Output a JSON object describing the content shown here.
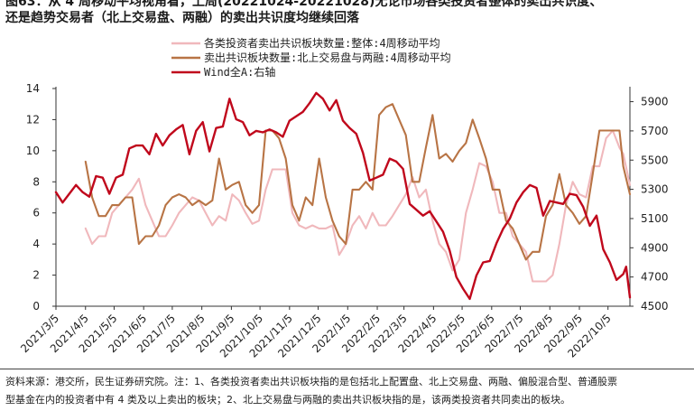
{
  "header": {
    "title_line1": "图63：从 4 周移动平均视角看，上周(20221024-20221028)无论市场各类投资者整体的卖出共识度、",
    "title_line2": "还是趋势交易者（北上交易盘、两融）的卖出共识度均继续回落"
  },
  "footer": {
    "source_line1": "资料来源：港交所，民生证券研究院。注：1、各类投资者卖出共识板块指的是包括北上配置盘、北上交易盘、两融、偏股混合型、普通股票",
    "source_line2": "型基金在内的投资者中有 4 类及以上卖出的板块；2、北上交易盘与两融的卖出共识板块指的是，该两类投资者共同卖出的板块。"
  },
  "chart_data": {
    "type": "line",
    "x_start": "2021-03-05",
    "x_end": "2022-10-28",
    "x_tick_labels": [
      "2021/3/5",
      "2021/4/5",
      "2021/5/5",
      "2021/6/5",
      "2021/7/5",
      "2021/8/5",
      "2021/9/5",
      "2021/10/5",
      "2021/11/5",
      "2021/12/5",
      "2022/1/5",
      "2022/2/5",
      "2022/3/5",
      "2022/4/5",
      "2022/5/5",
      "2022/6/5",
      "2022/7/5",
      "2022/8/5",
      "2022/9/5",
      "2022/10/5"
    ],
    "y_left": {
      "lim": [
        0,
        14
      ],
      "ticks": [
        0,
        2,
        4,
        6,
        8,
        10,
        12,
        14
      ]
    },
    "y_right": {
      "lim": [
        4500,
        5990
      ],
      "ticks": [
        4500,
        4700,
        4900,
        5100,
        5300,
        5500,
        5700,
        5900
      ]
    },
    "legend_position": "top-center",
    "grid": false,
    "series": [
      {
        "name": "各类投资者卖出共识板块数量:整体:4周移动平均",
        "axis": "left",
        "color": "#f0b8bc",
        "points": [
          [
            "2021-04-05",
            5.0
          ],
          [
            "2021-04-12",
            4.0
          ],
          [
            "2021-04-19",
            4.5
          ],
          [
            "2021-04-26",
            4.5
          ],
          [
            "2021-05-03",
            6.0
          ],
          [
            "2021-05-10",
            6.5
          ],
          [
            "2021-05-17",
            7.0
          ],
          [
            "2021-05-24",
            7.5
          ],
          [
            "2021-05-31",
            8.2
          ],
          [
            "2021-06-07",
            6.5
          ],
          [
            "2021-06-14",
            5.5
          ],
          [
            "2021-06-21",
            4.5
          ],
          [
            "2021-06-28",
            4.5
          ],
          [
            "2021-07-05",
            5.2
          ],
          [
            "2021-07-12",
            6.0
          ],
          [
            "2021-07-19",
            6.5
          ],
          [
            "2021-07-26",
            7.0
          ],
          [
            "2021-08-02",
            6.8
          ],
          [
            "2021-08-09",
            6.0
          ],
          [
            "2021-08-16",
            5.2
          ],
          [
            "2021-08-23",
            5.8
          ],
          [
            "2021-08-30",
            5.5
          ],
          [
            "2021-09-06",
            7.2
          ],
          [
            "2021-09-13",
            6.8
          ],
          [
            "2021-09-20",
            6.0
          ],
          [
            "2021-09-27",
            5.3
          ],
          [
            "2021-10-04",
            5.5
          ],
          [
            "2021-10-11",
            7.5
          ],
          [
            "2021-10-18",
            8.8
          ],
          [
            "2021-10-25",
            8.8
          ],
          [
            "2021-11-01",
            8.8
          ],
          [
            "2021-11-08",
            6.0
          ],
          [
            "2021-11-15",
            5.2
          ],
          [
            "2021-11-22",
            5.0
          ],
          [
            "2021-11-29",
            5.2
          ],
          [
            "2021-12-06",
            5.0
          ],
          [
            "2021-12-13",
            5.0
          ],
          [
            "2021-12-20",
            5.2
          ],
          [
            "2021-12-27",
            3.3
          ],
          [
            "2022-01-03",
            4.0
          ],
          [
            "2022-01-10",
            5.2
          ],
          [
            "2022-01-17",
            5.8
          ],
          [
            "2022-01-24",
            5.0
          ],
          [
            "2022-01-31",
            6.0
          ],
          [
            "2022-02-07",
            5.2
          ],
          [
            "2022-02-14",
            5.2
          ],
          [
            "2022-02-21",
            5.8
          ],
          [
            "2022-02-28",
            6.5
          ],
          [
            "2022-03-07",
            7.2
          ],
          [
            "2022-03-14",
            8.3
          ],
          [
            "2022-03-21",
            7.0
          ],
          [
            "2022-03-28",
            7.5
          ],
          [
            "2022-04-04",
            5.5
          ],
          [
            "2022-04-11",
            4.0
          ],
          [
            "2022-04-18",
            3.5
          ],
          [
            "2022-04-25",
            2.3
          ],
          [
            "2022-05-02",
            3.0
          ],
          [
            "2022-05-09",
            6.0
          ],
          [
            "2022-05-16",
            7.5
          ],
          [
            "2022-05-23",
            9.2
          ],
          [
            "2022-05-30",
            9.0
          ],
          [
            "2022-06-06",
            8.0
          ],
          [
            "2022-06-13",
            6.0
          ],
          [
            "2022-06-20",
            6.0
          ],
          [
            "2022-06-27",
            4.5
          ],
          [
            "2022-07-04",
            4.0
          ],
          [
            "2022-07-11",
            3.5
          ],
          [
            "2022-07-18",
            1.6
          ],
          [
            "2022-07-25",
            1.6
          ],
          [
            "2022-08-01",
            1.6
          ],
          [
            "2022-08-08",
            2.0
          ],
          [
            "2022-08-15",
            4.0
          ],
          [
            "2022-08-22",
            6.5
          ],
          [
            "2022-08-29",
            8.0
          ],
          [
            "2022-09-05",
            7.2
          ],
          [
            "2022-09-12",
            7.0
          ],
          [
            "2022-09-19",
            9.0
          ],
          [
            "2022-09-26",
            9.0
          ],
          [
            "2022-10-03",
            10.8
          ],
          [
            "2022-10-10",
            11.3
          ],
          [
            "2022-10-17",
            10.2
          ],
          [
            "2022-10-21",
            9.8
          ],
          [
            "2022-10-28",
            7.8
          ]
        ]
      },
      {
        "name": "卖出共识板块数量:北上交易盘与两融:4周移动平均",
        "axis": "left",
        "color": "#b87445",
        "points": [
          [
            "2021-04-05",
            9.3
          ],
          [
            "2021-04-12",
            7.0
          ],
          [
            "2021-04-19",
            5.8
          ],
          [
            "2021-04-26",
            5.8
          ],
          [
            "2021-05-03",
            6.5
          ],
          [
            "2021-05-10",
            6.5
          ],
          [
            "2021-05-17",
            7.0
          ],
          [
            "2021-05-24",
            7.0
          ],
          [
            "2021-05-31",
            4.0
          ],
          [
            "2021-06-07",
            4.5
          ],
          [
            "2021-06-14",
            4.5
          ],
          [
            "2021-06-21",
            5.2
          ],
          [
            "2021-06-28",
            6.5
          ],
          [
            "2021-07-05",
            7.0
          ],
          [
            "2021-07-12",
            7.2
          ],
          [
            "2021-07-19",
            7.0
          ],
          [
            "2021-07-26",
            6.5
          ],
          [
            "2021-08-02",
            6.8
          ],
          [
            "2021-08-09",
            6.5
          ],
          [
            "2021-08-16",
            6.8
          ],
          [
            "2021-08-23",
            9.5
          ],
          [
            "2021-08-30",
            7.5
          ],
          [
            "2021-09-06",
            7.8
          ],
          [
            "2021-09-13",
            8.0
          ],
          [
            "2021-09-20",
            6.5
          ],
          [
            "2021-09-27",
            6.0
          ],
          [
            "2021-10-04",
            6.5
          ],
          [
            "2021-10-11",
            11.3
          ],
          [
            "2021-10-18",
            11.3
          ],
          [
            "2021-10-25",
            10.8
          ],
          [
            "2021-11-01",
            9.5
          ],
          [
            "2021-11-08",
            6.5
          ],
          [
            "2021-11-15",
            5.5
          ],
          [
            "2021-11-22",
            7.0
          ],
          [
            "2021-11-29",
            6.5
          ],
          [
            "2021-12-06",
            9.5
          ],
          [
            "2021-12-13",
            7.0
          ],
          [
            "2021-12-20",
            5.5
          ],
          [
            "2021-12-27",
            4.5
          ],
          [
            "2022-01-03",
            4.0
          ],
          [
            "2022-01-10",
            7.5
          ],
          [
            "2022-01-17",
            7.5
          ],
          [
            "2022-01-24",
            8.0
          ],
          [
            "2022-01-31",
            7.5
          ],
          [
            "2022-02-07",
            12.3
          ],
          [
            "2022-02-14",
            12.8
          ],
          [
            "2022-02-21",
            13.0
          ],
          [
            "2022-02-28",
            12.0
          ],
          [
            "2022-03-07",
            11.0
          ],
          [
            "2022-03-14",
            8.0
          ],
          [
            "2022-03-21",
            8.0
          ],
          [
            "2022-03-28",
            10.2
          ],
          [
            "2022-04-04",
            12.3
          ],
          [
            "2022-04-11",
            9.5
          ],
          [
            "2022-04-18",
            9.8
          ],
          [
            "2022-04-25",
            9.3
          ],
          [
            "2022-05-02",
            10.0
          ],
          [
            "2022-05-09",
            10.5
          ],
          [
            "2022-05-16",
            12.0
          ],
          [
            "2022-05-23",
            10.8
          ],
          [
            "2022-05-30",
            9.5
          ],
          [
            "2022-06-06",
            7.5
          ],
          [
            "2022-06-13",
            7.5
          ],
          [
            "2022-06-20",
            5.5
          ],
          [
            "2022-06-27",
            5.0
          ],
          [
            "2022-07-04",
            4.0
          ],
          [
            "2022-07-11",
            3.0
          ],
          [
            "2022-07-18",
            3.5
          ],
          [
            "2022-07-25",
            3.5
          ],
          [
            "2022-08-01",
            5.8
          ],
          [
            "2022-08-08",
            6.5
          ],
          [
            "2022-08-15",
            8.5
          ],
          [
            "2022-08-22",
            6.5
          ],
          [
            "2022-08-29",
            6.0
          ],
          [
            "2022-09-05",
            5.3
          ],
          [
            "2022-09-12",
            5.8
          ],
          [
            "2022-09-19",
            8.5
          ],
          [
            "2022-09-26",
            11.3
          ],
          [
            "2022-10-03",
            11.3
          ],
          [
            "2022-10-10",
            11.3
          ],
          [
            "2022-10-17",
            11.3
          ],
          [
            "2022-10-21",
            9.0
          ],
          [
            "2022-10-28",
            7.2
          ]
        ]
      },
      {
        "name": "Wind全A:右轴",
        "axis": "right",
        "color": "#c0081c",
        "points": [
          [
            "2021-03-05",
            5280
          ],
          [
            "2021-03-12",
            5210
          ],
          [
            "2021-03-19",
            5270
          ],
          [
            "2021-03-26",
            5330
          ],
          [
            "2021-04-02",
            5280
          ],
          [
            "2021-04-09",
            5250
          ],
          [
            "2021-04-16",
            5390
          ],
          [
            "2021-04-23",
            5380
          ],
          [
            "2021-04-30",
            5270
          ],
          [
            "2021-05-07",
            5380
          ],
          [
            "2021-05-14",
            5400
          ],
          [
            "2021-05-21",
            5580
          ],
          [
            "2021-05-28",
            5600
          ],
          [
            "2021-06-04",
            5600
          ],
          [
            "2021-06-11",
            5540
          ],
          [
            "2021-06-18",
            5680
          ],
          [
            "2021-06-25",
            5600
          ],
          [
            "2021-07-02",
            5670
          ],
          [
            "2021-07-09",
            5710
          ],
          [
            "2021-07-16",
            5740
          ],
          [
            "2021-07-23",
            5540
          ],
          [
            "2021-07-30",
            5700
          ],
          [
            "2021-08-06",
            5760
          ],
          [
            "2021-08-13",
            5560
          ],
          [
            "2021-08-20",
            5720
          ],
          [
            "2021-08-27",
            5730
          ],
          [
            "2021-09-03",
            5920
          ],
          [
            "2021-09-10",
            5780
          ],
          [
            "2021-09-17",
            5760
          ],
          [
            "2021-09-24",
            5670
          ],
          [
            "2021-10-01",
            5700
          ],
          [
            "2021-10-08",
            5690
          ],
          [
            "2021-10-15",
            5710
          ],
          [
            "2021-10-22",
            5690
          ],
          [
            "2021-10-29",
            5660
          ],
          [
            "2021-11-05",
            5770
          ],
          [
            "2021-11-12",
            5800
          ],
          [
            "2021-11-19",
            5830
          ],
          [
            "2021-11-26",
            5890
          ],
          [
            "2021-12-03",
            5960
          ],
          [
            "2021-12-10",
            5920
          ],
          [
            "2021-12-17",
            5840
          ],
          [
            "2021-12-24",
            5910
          ],
          [
            "2021-12-31",
            5770
          ],
          [
            "2022-01-07",
            5720
          ],
          [
            "2022-01-14",
            5680
          ],
          [
            "2022-01-21",
            5550
          ],
          [
            "2022-01-28",
            5360
          ],
          [
            "2022-02-04",
            5380
          ],
          [
            "2022-02-11",
            5400
          ],
          [
            "2022-02-18",
            5510
          ],
          [
            "2022-02-25",
            5490
          ],
          [
            "2022-03-04",
            5440
          ],
          [
            "2022-03-11",
            5200
          ],
          [
            "2022-03-18",
            5160
          ],
          [
            "2022-03-25",
            5120
          ],
          [
            "2022-04-01",
            5150
          ],
          [
            "2022-04-08",
            5080
          ],
          [
            "2022-04-15",
            5010
          ],
          [
            "2022-04-22",
            4880
          ],
          [
            "2022-04-29",
            4700
          ],
          [
            "2022-05-06",
            4620
          ],
          [
            "2022-05-13",
            4550
          ],
          [
            "2022-05-20",
            4710
          ],
          [
            "2022-05-27",
            4800
          ],
          [
            "2022-06-03",
            4810
          ],
          [
            "2022-06-10",
            4930
          ],
          [
            "2022-06-17",
            5030
          ],
          [
            "2022-06-24",
            5100
          ],
          [
            "2022-07-01",
            5210
          ],
          [
            "2022-07-08",
            5280
          ],
          [
            "2022-07-15",
            5330
          ],
          [
            "2022-07-22",
            5310
          ],
          [
            "2022-07-29",
            5120
          ],
          [
            "2022-08-05",
            5220
          ],
          [
            "2022-08-12",
            5210
          ],
          [
            "2022-08-19",
            5200
          ],
          [
            "2022-08-26",
            5270
          ],
          [
            "2022-09-02",
            5260
          ],
          [
            "2022-09-09",
            5180
          ],
          [
            "2022-09-16",
            5050
          ],
          [
            "2022-09-23",
            5120
          ],
          [
            "2022-09-30",
            4890
          ],
          [
            "2022-10-07",
            4800
          ],
          [
            "2022-10-14",
            4680
          ],
          [
            "2022-10-21",
            4720
          ],
          [
            "2022-10-24",
            4770
          ],
          [
            "2022-10-28",
            4560
          ]
        ]
      }
    ]
  }
}
